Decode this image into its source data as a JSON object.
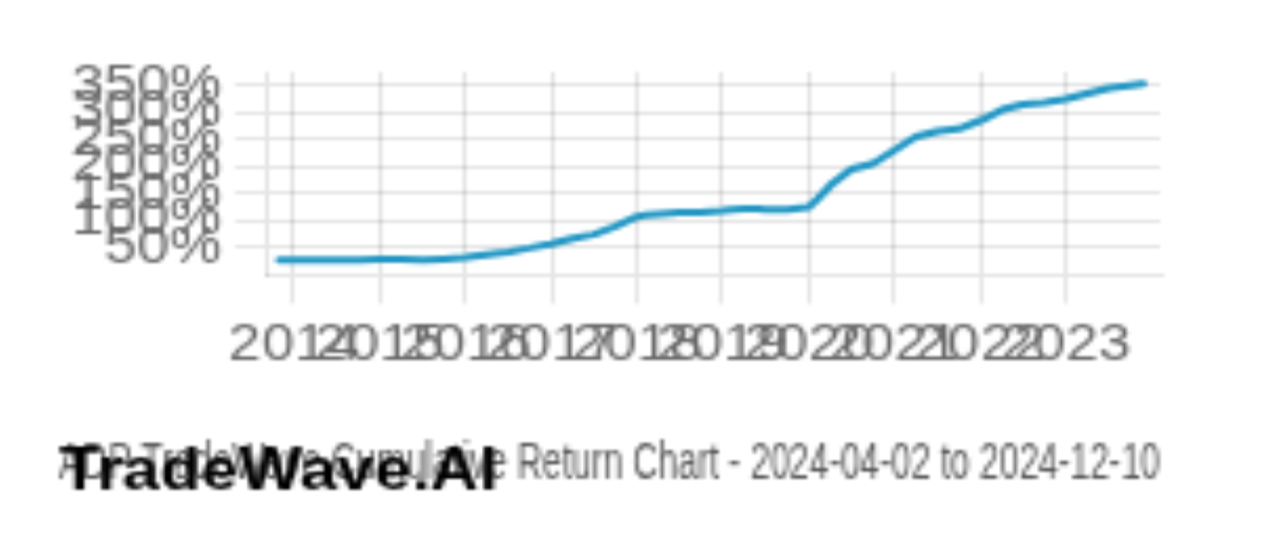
{
  "chart_data": {
    "type": "line",
    "title": "ADP TradeWave Cumulative Return Chart - 2024-04-02 to 2024-12-10",
    "annotations": [
      "TradeWave.AI"
    ],
    "color": "#2196c4",
    "x": [
      2013.83,
      2014.0,
      2014.25,
      2014.5,
      2014.75,
      2015.0,
      2015.25,
      2015.5,
      2015.75,
      2016.0,
      2016.25,
      2016.5,
      2016.75,
      2017.0,
      2017.25,
      2017.5,
      2017.75,
      2018.0,
      2018.1,
      2018.25,
      2018.5,
      2018.75,
      2019.0,
      2019.1,
      2019.25,
      2019.4,
      2019.5,
      2019.75,
      2020.0,
      2020.1,
      2020.25,
      2020.5,
      2020.75,
      2021.0,
      2021.25,
      2021.5,
      2021.75,
      2022.0,
      2022.25,
      2022.5,
      2022.75,
      2023.0,
      2023.25,
      2023.5,
      2023.75,
      2023.9
    ],
    "values": [
      28,
      28,
      27,
      27,
      28,
      29,
      30,
      28,
      30,
      32,
      38,
      43,
      50,
      58,
      68,
      75,
      90,
      108,
      110,
      112,
      115,
      116,
      119,
      121,
      122,
      123,
      121,
      120,
      125,
      140,
      165,
      195,
      205,
      230,
      255,
      265,
      270,
      285,
      305,
      315,
      318,
      325,
      335,
      345,
      350,
      353
    ],
    "xlim": [
      2013.7,
      2024.1
    ],
    "xticks": [
      2014,
      2015,
      2016,
      2017,
      2018,
      2019,
      2020,
      2021,
      2022,
      2023
    ],
    "ylim": [
      0,
      375
    ],
    "yticks": [
      {
        "value": 50,
        "label": "50%"
      },
      {
        "value": 100,
        "label": "100%"
      },
      {
        "value": 150,
        "label": "150%"
      },
      {
        "value": 200,
        "label": "200%"
      },
      {
        "value": 250,
        "label": "250%"
      },
      {
        "value": 300,
        "label": "300%"
      },
      {
        "value": 350,
        "label": "350%"
      }
    ],
    "grid": true
  }
}
